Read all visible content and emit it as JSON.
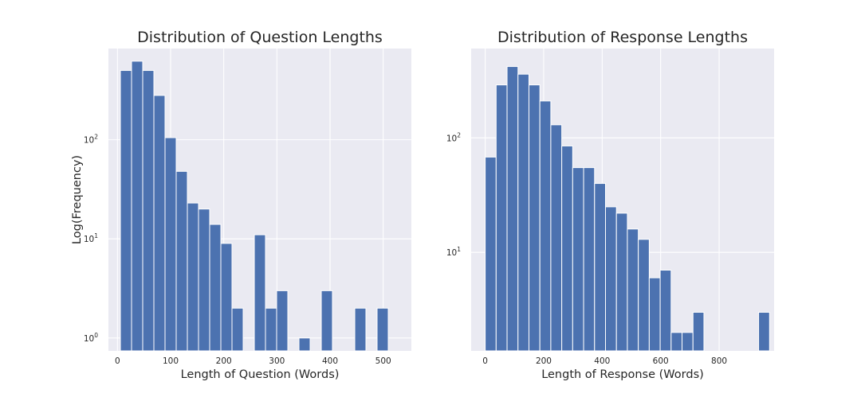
{
  "chart_data": [
    {
      "type": "bar",
      "title": "Distribution of Question Lengths",
      "xlabel": "Length of Question (Words)",
      "ylabel": "Log(Frequency)",
      "yscale": "log",
      "grid": true,
      "xlim": [
        -17,
        553
      ],
      "ylim_log10": [
        -0.13,
        2.92
      ],
      "xticks": [
        0,
        100,
        200,
        300,
        400,
        500
      ],
      "yticks": [
        {
          "base": "10",
          "exp": "0",
          "log10": 0
        },
        {
          "base": "10",
          "exp": "1",
          "log10": 1
        },
        {
          "base": "10",
          "exp": "2",
          "log10": 2
        }
      ],
      "bin_edges_start": 5.5,
      "bin_width": 21,
      "values": [
        500,
        620,
        500,
        280,
        105,
        48,
        23,
        20,
        14,
        9,
        2,
        0,
        11,
        2,
        3,
        0,
        1,
        0,
        3,
        0,
        0,
        2,
        0,
        2
      ]
    },
    {
      "type": "bar",
      "title": "Distribution of Response Lengths",
      "xlabel": "Length of Response (Words)",
      "ylabel": "",
      "yscale": "log",
      "grid": true,
      "xlim": [
        -48,
        988
      ],
      "ylim_log10": [
        0.14,
        2.78
      ],
      "xticks": [
        0,
        200,
        400,
        600,
        800
      ],
      "yticks": [
        {
          "base": "10",
          "exp": "1",
          "log10": 1
        },
        {
          "base": "10",
          "exp": "2",
          "log10": 2
        }
      ],
      "bin_edges_start": 0,
      "bin_width": 37.4,
      "values": [
        68,
        290,
        420,
        360,
        290,
        210,
        130,
        85,
        55,
        55,
        40,
        25,
        22,
        16,
        13,
        6,
        7,
        2,
        2,
        3,
        0,
        0,
        0,
        0,
        0,
        3
      ]
    }
  ]
}
